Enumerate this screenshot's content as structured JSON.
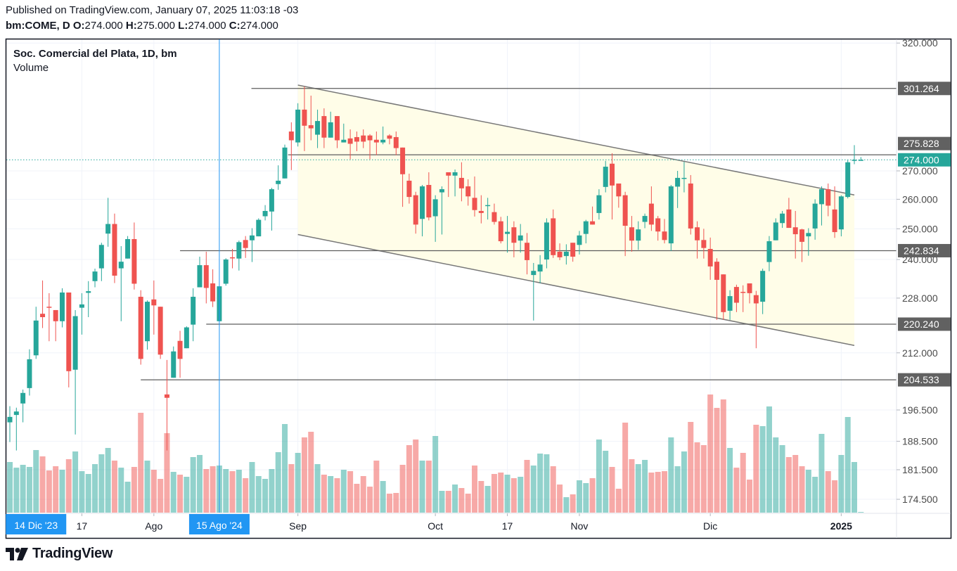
{
  "header": {
    "published": "Published on TradingView.com, January 07, 2025 11:03:18 -03",
    "symbol": "bm:COME, D",
    "o_label": "O:",
    "o": "274.000",
    "h_label": "H:",
    "h": "275.000",
    "l_label": "L:",
    "l": "274.000",
    "c_label": "C:",
    "c": "274.000"
  },
  "legend": {
    "title": "Soc. Comercial del Plata, 1D, bm",
    "indicator": "Volume"
  },
  "branding": {
    "logo_text": "TradingView"
  },
  "colors": {
    "up": "#26a69a",
    "down": "#ef5350",
    "tag": "#616161",
    "last_price": "#26a69a",
    "crosshair": "#2196f3",
    "channel_fill": "#fffde8",
    "drawing": "#5d5d5d"
  },
  "chart_data": {
    "type": "candlestick",
    "title": "Soc. Comercial del Plata, 1D, bm",
    "scale": "log",
    "price_ticks": [
      "320.000",
      "270.000",
      "260.000",
      "250.000",
      "240.000",
      "228.000",
      "212.000",
      "196.500",
      "188.500",
      "181.500",
      "174.500"
    ],
    "price_tags": [
      {
        "label": "301.264",
        "value": 301.264,
        "kind": "level"
      },
      {
        "label": "275.828",
        "value": 275.828,
        "kind": "level"
      },
      {
        "label": "274.000",
        "value": 274.0,
        "kind": "last"
      },
      {
        "label": "242.834",
        "value": 242.834,
        "kind": "level"
      },
      {
        "label": "220.240",
        "value": 220.24,
        "kind": "level"
      },
      {
        "label": "204.533",
        "value": 204.533,
        "kind": "level"
      }
    ],
    "time_labels": [
      {
        "label": "17",
        "index": 12,
        "bold": false
      },
      {
        "label": "Ago",
        "index": 23,
        "bold": false
      },
      {
        "label": "Sep",
        "index": 45,
        "bold": false
      },
      {
        "label": "Oct",
        "index": 66,
        "bold": false
      },
      {
        "label": "17",
        "index": 77,
        "bold": false
      },
      {
        "label": "Nov",
        "index": 88,
        "bold": false
      },
      {
        "label": "Dic",
        "index": 108,
        "bold": false
      },
      {
        "label": "2025",
        "index": 128,
        "bold": true
      }
    ],
    "date_tags": [
      {
        "label": "14 Dic '23",
        "index": 5
      },
      {
        "label": "15 Ago '24",
        "index": 33
      }
    ],
    "crosshair_index": 33,
    "horizontal_levels": [
      {
        "price": 301.264,
        "from_index": 37.9
      },
      {
        "price": 275.828,
        "from_index": 43.5
      },
      {
        "price": 242.834,
        "from_index": 27
      },
      {
        "price": 220.24,
        "from_index": 31
      },
      {
        "price": 204.533,
        "from_index": 21
      }
    ],
    "channel": {
      "from_index": 45,
      "to_index": 130,
      "upper": [
        302.6,
        261.5
      ],
      "lower": [
        248.1,
        214.1
      ]
    },
    "last_price": 274.0,
    "candles_ohlc": [
      [
        193.3,
        197.5,
        188.3,
        194.7
      ],
      [
        195.2,
        197.1,
        186.2,
        196.1
      ],
      [
        198.2,
        201.9,
        193.3,
        201.0
      ],
      [
        202.3,
        213.0,
        200.3,
        210.2
      ],
      [
        211.3,
        225.4,
        210.3,
        221.3
      ],
      [
        223.3,
        233.4,
        219.1,
        222.3
      ],
      [
        225.4,
        229.5,
        215.3,
        225.1
      ],
      [
        224.4,
        224.4,
        215.3,
        221.1
      ],
      [
        221.1,
        231.0,
        219.3,
        229.7
      ],
      [
        229.7,
        229.7,
        202.5,
        206.9
      ],
      [
        207.3,
        224.4,
        190.2,
        222.6
      ],
      [
        225.1,
        229.5,
        217.2,
        226.1
      ],
      [
        229.6,
        233.2,
        222.3,
        230.1
      ],
      [
        233.2,
        237.1,
        231.3,
        236.2
      ],
      [
        237.2,
        245.4,
        233.2,
        244.7
      ],
      [
        248.4,
        260.5,
        244.1,
        251.6
      ],
      [
        251.6,
        255.1,
        232.6,
        234.9
      ],
      [
        237.2,
        244.3,
        221.1,
        239.3
      ],
      [
        240.3,
        247.6,
        240.3,
        246.6
      ],
      [
        246.6,
        252.1,
        230.6,
        232.4
      ],
      [
        228.4,
        230.4,
        208.7,
        210.3
      ],
      [
        215.3,
        227.3,
        212.9,
        226.9
      ],
      [
        227.6,
        233.4,
        217.2,
        225.8
      ],
      [
        225.4,
        225.4,
        210.3,
        211.5
      ],
      [
        200.6,
        210.0,
        186.2,
        199.7
      ],
      [
        205.1,
        213.8,
        205.1,
        212.4
      ],
      [
        215.4,
        218.3,
        205.1,
        210.3
      ],
      [
        213.3,
        219.6,
        213.3,
        219.3
      ],
      [
        220.1,
        231.0,
        215.3,
        228.4
      ],
      [
        231.3,
        240.9,
        231.3,
        238.2
      ],
      [
        238.2,
        242.5,
        226.4,
        231.1
      ],
      [
        232.5,
        236.9,
        225.3,
        227.0
      ],
      [
        221.1,
        231.6,
        221.1,
        231.6
      ],
      [
        232.4,
        240.4,
        231.8,
        240.0
      ],
      [
        240.7,
        243.4,
        237.2,
        240.4
      ],
      [
        240.3,
        246.1,
        236.5,
        245.6
      ],
      [
        246.3,
        247.6,
        240.5,
        243.7
      ],
      [
        246.2,
        250.2,
        239.2,
        247.8
      ],
      [
        247.5,
        253.5,
        247.5,
        253.0
      ],
      [
        254.2,
        258.0,
        252.8,
        256.0
      ],
      [
        255.8,
        264.0,
        249.4,
        263.5
      ],
      [
        265.3,
        272.0,
        263.3,
        266.5
      ],
      [
        267.3,
        279.6,
        267.3,
        278.5
      ],
      [
        284.5,
        288.0,
        270.3,
        281.2
      ],
      [
        280.4,
        295.4,
        278.9,
        292.9
      ],
      [
        292.9,
        302.0,
        277.2,
        286.7
      ],
      [
        286.9,
        298.4,
        281.2,
        285.7
      ],
      [
        283.3,
        292.9,
        278.3,
        288.5
      ],
      [
        290.4,
        293.4,
        278.3,
        282.2
      ],
      [
        282.2,
        292.1,
        282.2,
        288.0
      ],
      [
        290.4,
        290.4,
        278.3,
        281.2
      ],
      [
        280.4,
        287.5,
        280.4,
        281.4
      ],
      [
        281.9,
        285.3,
        274.2,
        279.9
      ],
      [
        282.4,
        284.5,
        277.2,
        280.7
      ],
      [
        283.0,
        285.3,
        278.3,
        280.7
      ],
      [
        283.0,
        283.5,
        274.2,
        281.2
      ],
      [
        281.4,
        284.5,
        275.7,
        280.4
      ],
      [
        280.4,
        286.4,
        279.7,
        281.4
      ],
      [
        283.0,
        283.5,
        279.7,
        281.8
      ],
      [
        282.4,
        284.5,
        275.7,
        278.3
      ],
      [
        278.5,
        278.5,
        257.4,
        268.8
      ],
      [
        266.5,
        269.0,
        258.5,
        260.8
      ],
      [
        261.4,
        262.6,
        248.4,
        251.4
      ],
      [
        253.3,
        265.0,
        247.5,
        264.5
      ],
      [
        265.0,
        269.5,
        252.8,
        253.8
      ],
      [
        254.2,
        261.4,
        245.7,
        260.0
      ],
      [
        262.4,
        264.5,
        248.1,
        263.5
      ],
      [
        269.5,
        269.5,
        260.8,
        268.3
      ],
      [
        268.3,
        270.5,
        261.0,
        269.5
      ],
      [
        267.5,
        273.1,
        259.3,
        263.8
      ],
      [
        264.5,
        267.0,
        257.8,
        261.0
      ],
      [
        260.5,
        268.0,
        254.1,
        256.3
      ],
      [
        256.0,
        261.4,
        251.8,
        255.3
      ],
      [
        257.8,
        260.5,
        253.1,
        258.0
      ],
      [
        255.6,
        258.5,
        251.4,
        252.3
      ],
      [
        252.5,
        254.0,
        245.2,
        245.9
      ],
      [
        248.3,
        254.3,
        242.2,
        249.0
      ],
      [
        250.5,
        252.5,
        240.7,
        245.4
      ],
      [
        246.1,
        251.6,
        242.2,
        247.8
      ],
      [
        245.4,
        248.6,
        235.3,
        239.8
      ],
      [
        235.1,
        238.9,
        221.3,
        236.4
      ],
      [
        236.2,
        241.4,
        232.5,
        238.4
      ],
      [
        240.0,
        253.5,
        237.2,
        252.1
      ],
      [
        253.5,
        256.5,
        240.5,
        241.4
      ],
      [
        242.5,
        245.2,
        239.8,
        240.7
      ],
      [
        241.1,
        244.9,
        238.4,
        242.5
      ],
      [
        245.4,
        245.4,
        239.3,
        240.9
      ],
      [
        244.7,
        249.3,
        241.6,
        247.8
      ],
      [
        248.3,
        253.0,
        245.2,
        252.5
      ],
      [
        252.5,
        257.5,
        251.4,
        251.4
      ],
      [
        255.3,
        263.5,
        253.1,
        261.4
      ],
      [
        264.3,
        273.6,
        262.4,
        271.5
      ],
      [
        272.6,
        276.4,
        253.1,
        264.8
      ],
      [
        265.5,
        265.5,
        257.1,
        261.0
      ],
      [
        261.4,
        262.6,
        241.1,
        251.0
      ],
      [
        250.5,
        254.3,
        242.5,
        246.1
      ],
      [
        246.1,
        252.5,
        243.1,
        249.8
      ],
      [
        252.3,
        255.1,
        250.2,
        254.3
      ],
      [
        258.5,
        264.5,
        249.3,
        251.4
      ],
      [
        253.5,
        254.3,
        246.1,
        249.1
      ],
      [
        249.1,
        253.3,
        245.2,
        246.3
      ],
      [
        245.2,
        265.0,
        242.7,
        264.5
      ],
      [
        264.4,
        270.0,
        257.0,
        267.5
      ],
      [
        267.3,
        273.3,
        262.4,
        267.5
      ],
      [
        265.5,
        268.5,
        248.1,
        250.1
      ],
      [
        250.5,
        252.5,
        240.3,
        246.2
      ],
      [
        246.3,
        250.0,
        240.3,
        243.7
      ],
      [
        243.4,
        247.1,
        233.6,
        237.8
      ],
      [
        239.3,
        240.4,
        221.5,
        233.6
      ],
      [
        235.3,
        235.3,
        221.5,
        223.8
      ],
      [
        224.2,
        230.4,
        221.5,
        228.6
      ],
      [
        231.4,
        232.1,
        223.8,
        226.6
      ],
      [
        229.9,
        231.9,
        223.8,
        229.7
      ],
      [
        232.5,
        232.5,
        226.4,
        229.5
      ],
      [
        228.9,
        230.2,
        213.3,
        226.4
      ],
      [
        226.9,
        237.1,
        223.2,
        236.4
      ],
      [
        239.2,
        247.6,
        236.3,
        245.9
      ],
      [
        246.2,
        253.5,
        246.2,
        252.1
      ],
      [
        251.9,
        256.0,
        250.3,
        255.1
      ],
      [
        256.5,
        260.5,
        250.3,
        250.3
      ],
      [
        250.5,
        256.0,
        240.3,
        248.2
      ],
      [
        249.8,
        250.0,
        239.2,
        245.7
      ],
      [
        247.5,
        250.2,
        241.2,
        248.6
      ],
      [
        250.1,
        260.0,
        246.4,
        258.5
      ],
      [
        258.3,
        264.5,
        251.1,
        263.5
      ],
      [
        263.5,
        265.5,
        254.2,
        257.8
      ],
      [
        256.5,
        264.5,
        247.0,
        248.9
      ],
      [
        249.8,
        261.4,
        247.5,
        261.0
      ],
      [
        260.8,
        273.9,
        260.3,
        273.1
      ],
      [
        273.7,
        279.4,
        272.4,
        274.0
      ],
      [
        274,
        275,
        274,
        274
      ]
    ],
    "volume_relative": [
      72,
      64,
      68,
      65,
      89,
      80,
      60,
      66,
      61,
      76,
      87,
      59,
      55,
      69,
      83,
      92,
      74,
      64,
      44,
      65,
      142,
      74,
      61,
      48,
      113,
      58,
      54,
      51,
      79,
      82,
      62,
      66,
      67,
      62,
      59,
      61,
      49,
      72,
      52,
      48,
      62,
      86,
      126,
      69,
      85,
      107,
      115,
      69,
      54,
      52,
      49,
      61,
      59,
      41,
      52,
      37,
      74,
      45,
      27,
      28,
      68,
      96,
      104,
      74,
      74,
      109,
      31,
      31,
      40,
      35,
      27,
      67,
      45,
      38,
      55,
      57,
      54,
      49,
      51,
      75,
      67,
      84,
      83,
      66,
      40,
      22,
      26,
      46,
      42,
      49,
      104,
      88,
      65,
      34,
      128,
      76,
      69,
      75,
      57,
      58,
      59,
      107,
      66,
      87,
      129,
      100,
      96,
      168,
      149,
      161,
      92,
      64,
      85,
      47,
      125,
      123,
      151,
      107,
      96,
      79,
      82,
      66,
      61,
      51,
      112,
      59,
      46,
      82,
      136,
      72,
      1
    ],
    "volume_direction": "GGGGGRRRGRGGGGGGRGGRRGRRRGRGGGRRGGRGRGGGGGGRGRRGRGRGRRRRRGRRRRRGRGGRGRRRRGRRGRGRGGGRRGRGGRGGRRRRGGRRRGGGRRRRRRGRRRRGGGGRRRGGGRRGGGG"
  }
}
